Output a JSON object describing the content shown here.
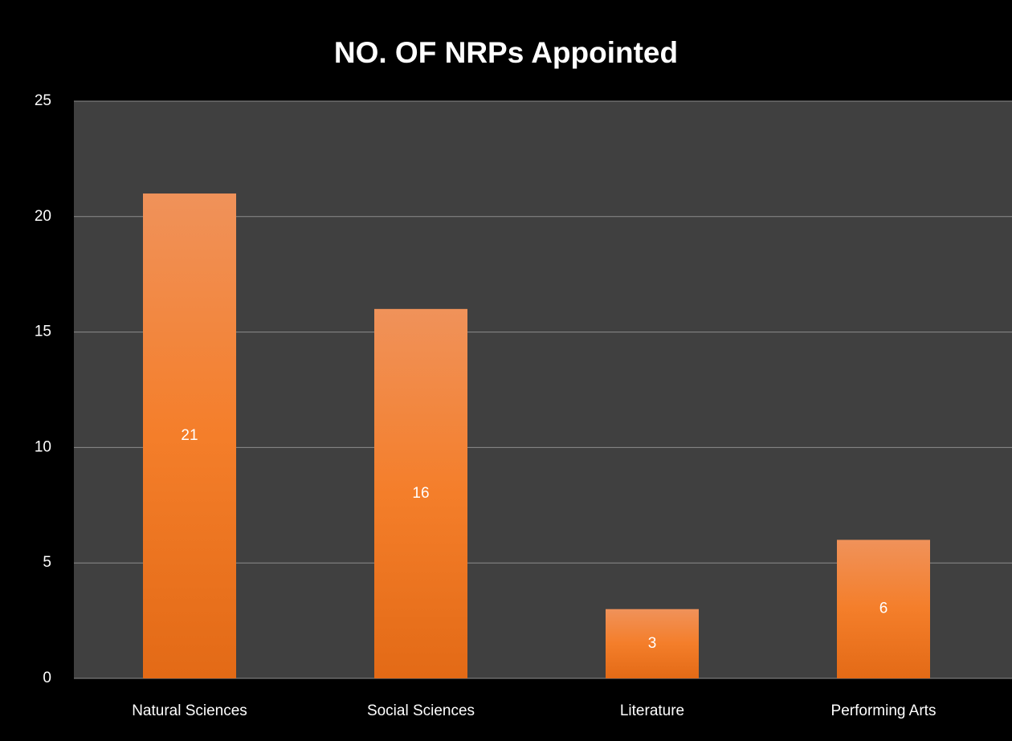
{
  "chart_data": {
    "type": "bar",
    "title": "NO. OF NRPs Appointed",
    "categories": [
      "Natural Sciences",
      "Social Sciences",
      "Literature",
      "Performing Arts"
    ],
    "values": [
      21,
      16,
      3,
      6
    ],
    "color": "#ee7f30",
    "ylim": [
      0,
      25
    ],
    "yticks": [
      0,
      5,
      10,
      15,
      20,
      25
    ],
    "grid": true
  }
}
